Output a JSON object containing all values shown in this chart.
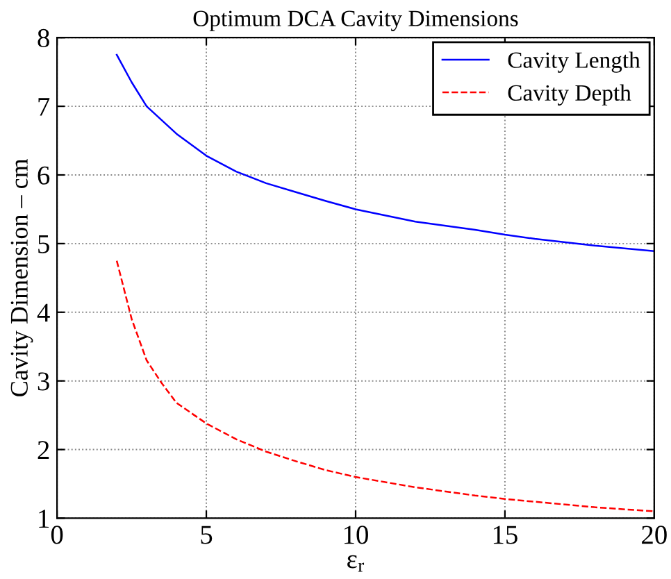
{
  "chart_data": {
    "type": "line",
    "title": "Optimum DCA Cavity Dimensions",
    "xlabel": "ε$_{r}$",
    "ylabel": "Cavity Dimension – cm",
    "xlim": [
      0,
      20
    ],
    "ylim": [
      1,
      8
    ],
    "xticks": [
      0,
      5,
      10,
      15,
      20
    ],
    "yticks": [
      1,
      2,
      3,
      4,
      5,
      6,
      7,
      8
    ],
    "grid": true,
    "legend": "top right",
    "series": [
      {
        "name": "Cavity Length",
        "color": "#0000ff",
        "line_style": "solid",
        "x": [
          2,
          2.5,
          3,
          3.5,
          4,
          5,
          6,
          7,
          8,
          9,
          10,
          12,
          14,
          15,
          16,
          18,
          20
        ],
        "values": [
          7.75,
          7.35,
          7.0,
          6.8,
          6.6,
          6.28,
          6.05,
          5.88,
          5.75,
          5.62,
          5.5,
          5.32,
          5.2,
          5.13,
          5.07,
          4.97,
          4.89
        ]
      },
      {
        "name": "Cavity Depth",
        "color": "#ff0000",
        "line_style": "dashed",
        "x": [
          2,
          2.5,
          3,
          3.5,
          4,
          5,
          6,
          7,
          8,
          9,
          10,
          12,
          14,
          15,
          16,
          18,
          20
        ],
        "values": [
          4.75,
          3.9,
          3.3,
          2.97,
          2.68,
          2.38,
          2.15,
          1.97,
          1.83,
          1.7,
          1.6,
          1.45,
          1.33,
          1.28,
          1.24,
          1.16,
          1.1
        ]
      }
    ]
  }
}
